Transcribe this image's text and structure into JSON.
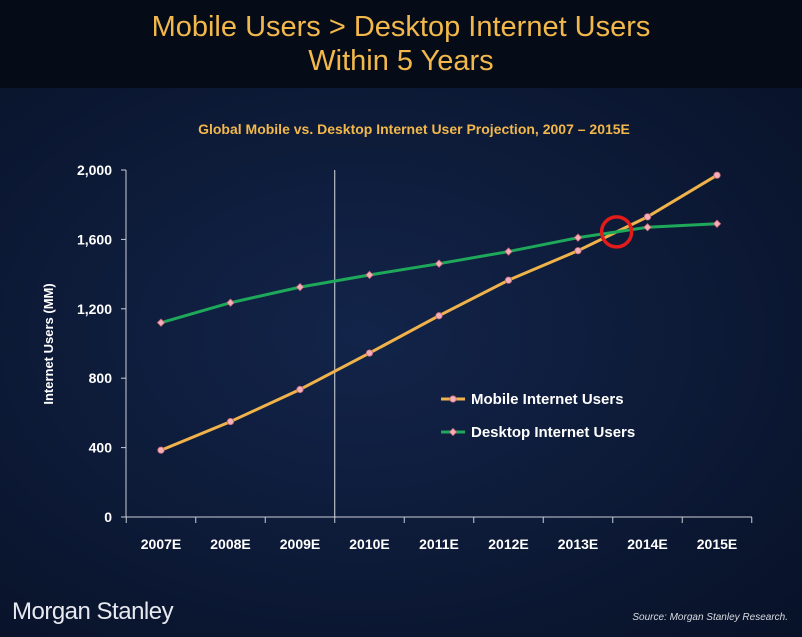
{
  "header": {
    "title_line1": "Mobile Users > Desktop Internet Users",
    "title_line2": "Within 5 Years"
  },
  "footer": {
    "brand": "Morgan Stanley",
    "source": "Source: Morgan Stanley Research."
  },
  "colors": {
    "accent": "#f2b84b",
    "mobile_line": "#f0b24a",
    "desktop_line": "#1ea85a",
    "marker_fill": "#f3b0b8",
    "highlight_circle": "#e21b1b",
    "axis": "#c9cdd6"
  },
  "chart_data": {
    "type": "line",
    "title": "Global Mobile vs. Desktop Internet User Projection, 2007 – 2015E",
    "ylabel": "Internet Users (MM)",
    "xlabel": "",
    "categories": [
      "2007E",
      "2008E",
      "2009E",
      "2010E",
      "2011E",
      "2012E",
      "2013E",
      "2014E",
      "2015E"
    ],
    "yticks": [
      0,
      400,
      800,
      1200,
      1600,
      2000
    ],
    "ytick_labels": [
      "0",
      "400",
      "800",
      "1,200",
      "1,600",
      "2,000"
    ],
    "ylim": [
      0,
      2000
    ],
    "grid": false,
    "legend_position": "center-right",
    "divider_after_category": "2009E",
    "highlight_crossover": "between 2013E and 2014E",
    "series": [
      {
        "name": "Mobile Internet Users",
        "values": [
          385,
          550,
          735,
          945,
          1160,
          1365,
          1535,
          1730,
          1970
        ]
      },
      {
        "name": "Desktop Internet Users",
        "values": [
          1120,
          1235,
          1325,
          1395,
          1460,
          1530,
          1610,
          1670,
          1690
        ]
      }
    ]
  }
}
